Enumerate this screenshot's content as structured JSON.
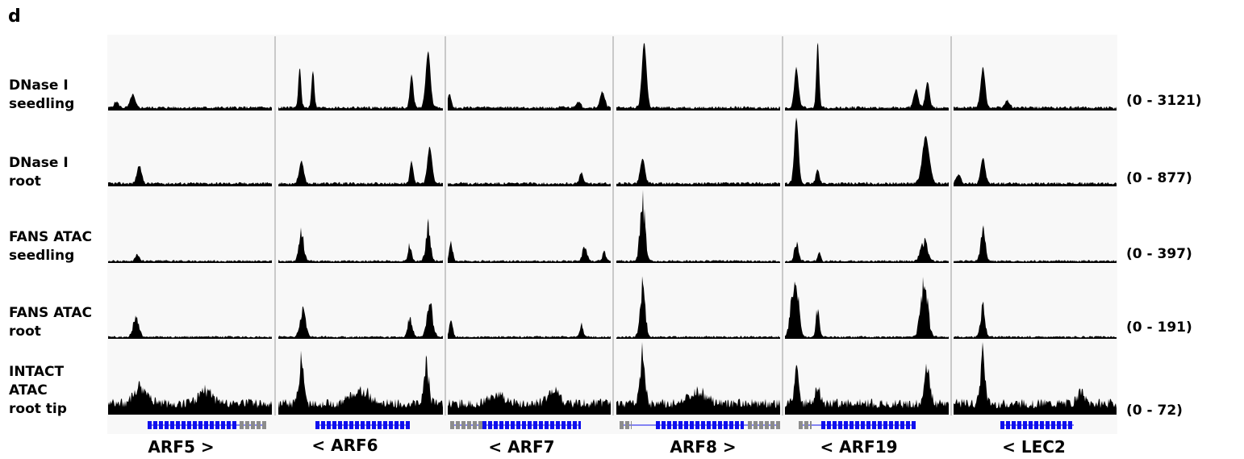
{
  "panel_letter": "d",
  "tracks": [
    {
      "label": "DNase I\nseedling",
      "range": "(0 - 3121)"
    },
    {
      "label": "DNase I\nroot",
      "range": "(0 - 877)"
    },
    {
      "label": "FANS ATAC\nseedling",
      "range": "(0 - 397)"
    },
    {
      "label": "FANS ATAC\nroot",
      "range": "(0 - 191)"
    },
    {
      "label": "INTACT\nATAC\nroot tip",
      "range": "(0 - 72)"
    }
  ],
  "genes": [
    {
      "label": "ARF5 >"
    },
    {
      "label": "< ARF6"
    },
    {
      "label": "< ARF7"
    },
    {
      "label": "ARF8 >"
    },
    {
      "label": "< ARF19"
    },
    {
      "label": "< LEC2"
    }
  ],
  "colors": {
    "signal": "#000000",
    "gene_model": "#1010ee",
    "gene_model_alt": "#8c8c8c",
    "panel_background": "#f8f8f8",
    "divider": "#9a9a9a"
  }
}
